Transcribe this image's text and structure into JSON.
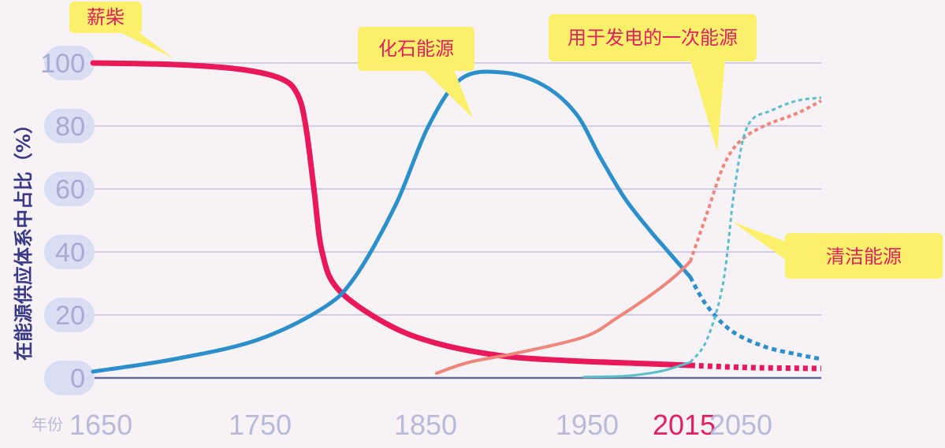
{
  "chart_data": {
    "type": "line",
    "ylabel": "在能源供应体系中占比（%）",
    "x_prefix": "年份",
    "x_ticks": [
      "1650",
      "1750",
      "1850",
      "1950",
      "2015",
      "2050"
    ],
    "x_highlight": "2015",
    "y_ticks": [
      "0",
      "20",
      "40",
      "60",
      "80",
      "100"
    ],
    "xlim": [
      1650,
      2095
    ],
    "ylim": [
      0,
      100
    ],
    "grid": true,
    "colors": {
      "firewood": "#e8185a",
      "fossil": "#2b8fcc",
      "electric": "#f0857a",
      "clean": "#5bbfcb"
    },
    "series": [
      {
        "name": "薪柴",
        "key": "firewood",
        "solid_points": [
          [
            1650,
            100
          ],
          [
            1700,
            99.5
          ],
          [
            1740,
            98
          ],
          [
            1765,
            95
          ],
          [
            1775,
            90
          ],
          [
            1780,
            80
          ],
          [
            1785,
            60
          ],
          [
            1790,
            40
          ],
          [
            1800,
            28
          ],
          [
            1830,
            17
          ],
          [
            1860,
            11
          ],
          [
            1900,
            7
          ],
          [
            1940,
            5.5
          ],
          [
            1990,
            4.5
          ],
          [
            2015,
            4
          ]
        ],
        "forecast_points": [
          [
            2015,
            4
          ],
          [
            2050,
            3.3
          ],
          [
            2095,
            3
          ]
        ]
      },
      {
        "name": "化石能源",
        "key": "fossil",
        "solid_points": [
          [
            1650,
            2
          ],
          [
            1700,
            6
          ],
          [
            1750,
            12
          ],
          [
            1790,
            22
          ],
          [
            1810,
            32
          ],
          [
            1835,
            55
          ],
          [
            1855,
            80
          ],
          [
            1875,
            95
          ],
          [
            1900,
            97
          ],
          [
            1925,
            93
          ],
          [
            1945,
            84
          ],
          [
            1960,
            70
          ],
          [
            1975,
            57
          ],
          [
            1990,
            47
          ],
          [
            2000,
            41
          ],
          [
            2010,
            35
          ],
          [
            2015,
            32
          ]
        ],
        "forecast_points": [
          [
            2015,
            32
          ],
          [
            2025,
            23
          ],
          [
            2040,
            15
          ],
          [
            2060,
            10
          ],
          [
            2080,
            7.5
          ],
          [
            2095,
            6
          ]
        ]
      },
      {
        "name": "用于发电的一次能源",
        "key": "electric",
        "solid_points": [
          [
            1860,
            1.5
          ],
          [
            1880,
            5
          ],
          [
            1910,
            8
          ],
          [
            1950,
            13
          ],
          [
            1970,
            19
          ],
          [
            1990,
            26
          ],
          [
            2005,
            32
          ],
          [
            2015,
            37
          ]
        ],
        "forecast_points": [
          [
            2015,
            37
          ],
          [
            2025,
            52
          ],
          [
            2035,
            67
          ],
          [
            2045,
            75
          ],
          [
            2060,
            80
          ],
          [
            2080,
            84
          ],
          [
            2095,
            88
          ]
        ]
      },
      {
        "name": "清洁能源",
        "key": "clean",
        "solid_points": [
          [
            1950,
            0.3
          ],
          [
            1975,
            0.6
          ],
          [
            1990,
            1.5
          ],
          [
            2000,
            2.5
          ],
          [
            2015,
            5
          ]
        ],
        "forecast_points": [
          [
            2015,
            5
          ],
          [
            2025,
            12
          ],
          [
            2035,
            30
          ],
          [
            2042,
            60
          ],
          [
            2050,
            80
          ],
          [
            2065,
            85
          ],
          [
            2080,
            88
          ],
          [
            2095,
            89
          ]
        ]
      }
    ]
  },
  "callouts": {
    "firewood": "薪柴",
    "fossil": "化石能源",
    "electric": "用于发电的一次能源",
    "clean": "清洁能源"
  }
}
